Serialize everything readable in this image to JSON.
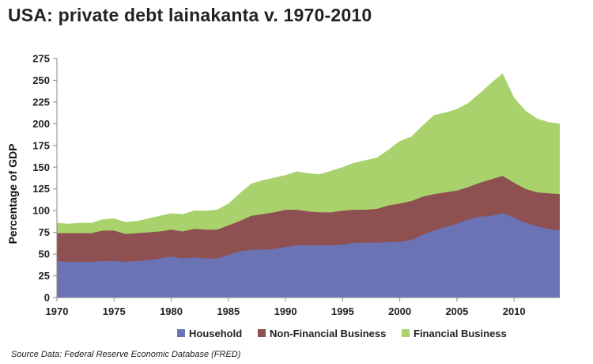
{
  "title": "USA: private debt lainakanta v. 1970-2010",
  "source": "Source Data:  Federal Reserve Economic Database (FRED)",
  "colors": {
    "household": "#6b73b5",
    "non_financial": "#8e5050",
    "financial": "#a9d16c"
  },
  "chart_data": {
    "type": "area",
    "stacked": true,
    "ylabel": "Percentage of GDP",
    "xlabel": "",
    "ylim": [
      0,
      275
    ],
    "xlim": [
      1970,
      2014
    ],
    "yticks": [
      0,
      25,
      50,
      75,
      100,
      125,
      150,
      175,
      200,
      225,
      250,
      275
    ],
    "xticks": [
      1970,
      1975,
      1980,
      1985,
      1990,
      1995,
      2000,
      2005,
      2010
    ],
    "grid": false,
    "legend_position": "bottom",
    "x": [
      1970,
      1971,
      1972,
      1973,
      1974,
      1975,
      1976,
      1977,
      1978,
      1979,
      1980,
      1981,
      1982,
      1983,
      1984,
      1985,
      1986,
      1987,
      1988,
      1989,
      1990,
      1991,
      1992,
      1993,
      1994,
      1995,
      1996,
      1997,
      1998,
      1999,
      2000,
      2001,
      2002,
      2003,
      2004,
      2005,
      2006,
      2007,
      2008,
      2009,
      2010,
      2011,
      2012,
      2013,
      2014
    ],
    "series": [
      {
        "name": "Household",
        "values": [
          42,
          41,
          41,
          41,
          42,
          42,
          41,
          42,
          43,
          45,
          47,
          45,
          46,
          45,
          45,
          49,
          53,
          55,
          55,
          56,
          58,
          60,
          60,
          60,
          60,
          61,
          63,
          63,
          63,
          64,
          64,
          66,
          72,
          77,
          81,
          85,
          90,
          93,
          94,
          97,
          92,
          86,
          82,
          79,
          77
        ]
      },
      {
        "name": "Non-Financial Business",
        "values": [
          74,
          74,
          74,
          74,
          77,
          77,
          73,
          74,
          75,
          76,
          78,
          76,
          79,
          78,
          78,
          83,
          88,
          94,
          96,
          98,
          101,
          101,
          99,
          98,
          98,
          100,
          101,
          101,
          102,
          106,
          108,
          111,
          116,
          119,
          121,
          123,
          127,
          132,
          136,
          140,
          132,
          125,
          121,
          120,
          119
        ]
      },
      {
        "name": "Financial Business",
        "values": [
          86,
          85,
          86,
          86,
          90,
          91,
          87,
          88,
          91,
          94,
          97,
          96,
          100,
          100,
          101,
          108,
          120,
          131,
          135,
          138,
          141,
          145,
          143,
          142,
          146,
          150,
          155,
          158,
          161,
          170,
          180,
          185,
          198,
          210,
          213,
          217,
          224,
          235,
          247,
          258,
          230,
          215,
          206,
          202,
          200
        ]
      }
    ]
  }
}
